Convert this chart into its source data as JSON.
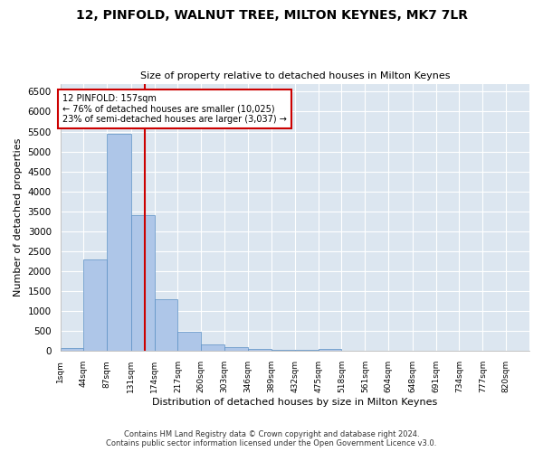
{
  "title": "12, PINFOLD, WALNUT TREE, MILTON KEYNES, MK7 7LR",
  "subtitle": "Size of property relative to detached houses in Milton Keynes",
  "xlabel": "Distribution of detached houses by size in Milton Keynes",
  "ylabel": "Number of detached properties",
  "bin_edges": [
    1,
    44,
    87,
    131,
    174,
    217,
    260,
    303,
    346,
    389,
    432,
    475,
    518,
    561,
    604,
    648,
    691,
    734,
    777,
    820,
    863
  ],
  "bar_heights": [
    70,
    2300,
    5450,
    3400,
    1300,
    480,
    165,
    100,
    60,
    35,
    20,
    60,
    10,
    5,
    5,
    5,
    5,
    5,
    5,
    5
  ],
  "bar_color": "#aec6e8",
  "bar_edge_color": "#5a8fc4",
  "vline_x": 157,
  "vline_color": "#cc0000",
  "annotation_text": "12 PINFOLD: 157sqm\n← 76% of detached houses are smaller (10,025)\n23% of semi-detached houses are larger (3,037) →",
  "annotation_box_color": "#ffffff",
  "annotation_box_edge": "#cc0000",
  "ylim": [
    0,
    6700
  ],
  "yticks": [
    0,
    500,
    1000,
    1500,
    2000,
    2500,
    3000,
    3500,
    4000,
    4500,
    5000,
    5500,
    6000,
    6500
  ],
  "bg_color": "#dce6f0",
  "fig_bg_color": "#ffffff",
  "footer": "Contains HM Land Registry data © Crown copyright and database right 2024.\nContains public sector information licensed under the Open Government Licence v3.0."
}
